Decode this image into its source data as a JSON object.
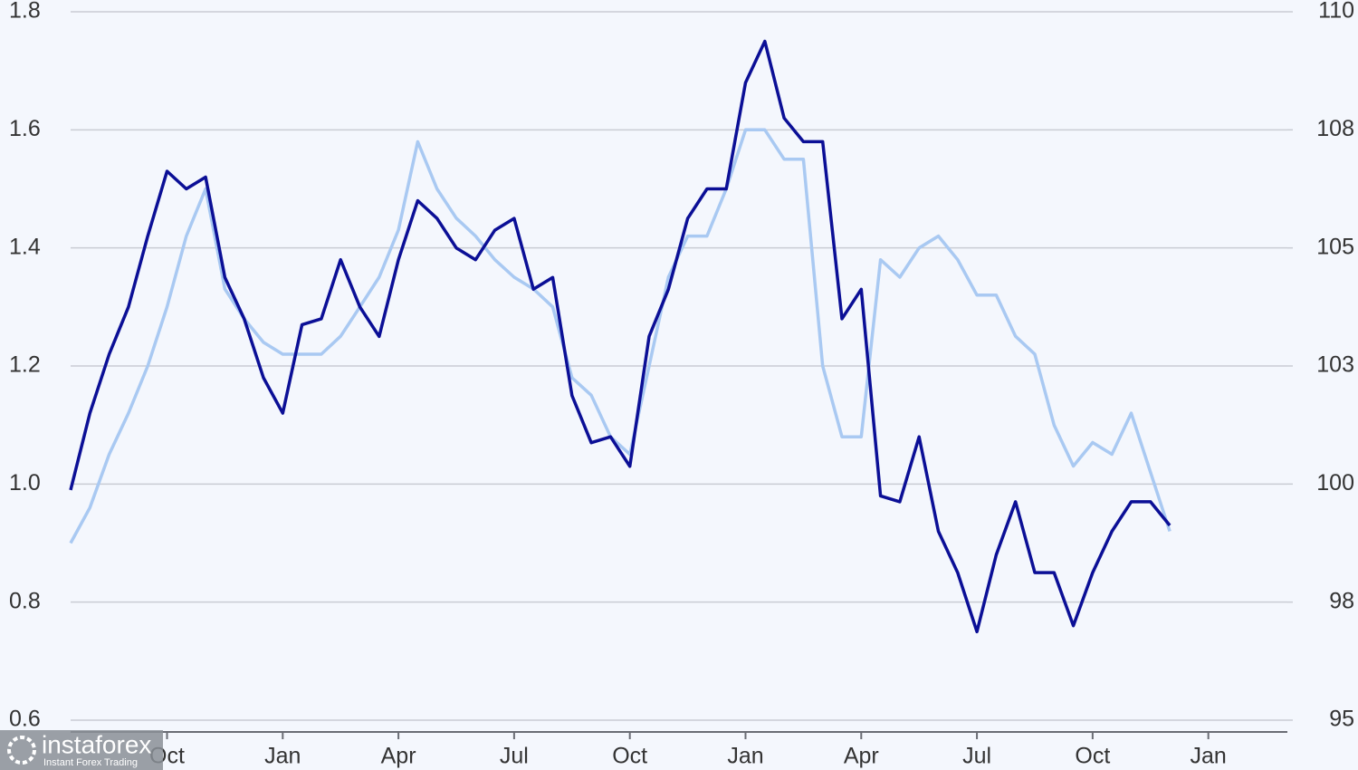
{
  "chart_data": {
    "type": "line",
    "x": [
      -2.5,
      -2,
      -1.5,
      -1,
      -0.5,
      0,
      0.5,
      1,
      1.5,
      2,
      2.5,
      3,
      3.5,
      4,
      4.5,
      5,
      5.5,
      6,
      6.5,
      7,
      7.5,
      8,
      8.5,
      9,
      9.5,
      10,
      10.5,
      11,
      11.5,
      12,
      12.5,
      13,
      13.5,
      14,
      14.5,
      15,
      15.5,
      16,
      16.5,
      17,
      17.5,
      18,
      18.5,
      19,
      19.5,
      20,
      20.5,
      21,
      21.5,
      22,
      22.5,
      23,
      23.5,
      24,
      24.5,
      25,
      25.5,
      26
    ],
    "series": [
      {
        "color": "#0b0f96",
        "axis": "y",
        "values": [
          0.99,
          1.12,
          1.22,
          1.3,
          1.42,
          1.53,
          1.5,
          1.52,
          1.35,
          1.28,
          1.18,
          1.12,
          1.27,
          1.28,
          1.38,
          1.3,
          1.25,
          1.38,
          1.48,
          1.45,
          1.4,
          1.38,
          1.43,
          1.45,
          1.33,
          1.35,
          1.15,
          1.07,
          1.08,
          1.03,
          1.25,
          1.33,
          1.45,
          1.5,
          1.5,
          1.68,
          1.75,
          1.62,
          1.58,
          1.58,
          1.28,
          1.33,
          0.98,
          0.97,
          1.08,
          0.92,
          0.85,
          0.75,
          0.88,
          0.97,
          0.85,
          0.85,
          0.76,
          0.85,
          0.92,
          0.97,
          0.97,
          0.93
        ]
      },
      {
        "color": "#a9c9f2",
        "axis": "y2",
        "values": [
          98.75,
          99.5,
          100.63,
          101.5,
          102.5,
          103.75,
          105.25,
          106.25,
          104.13,
          103.5,
          103,
          102.75,
          102.75,
          102.75,
          103.13,
          103.75,
          104.38,
          105.38,
          107.25,
          106.25,
          105.63,
          105.25,
          104.75,
          104.38,
          104.13,
          103.75,
          102.25,
          101.88,
          101,
          100.63,
          102.5,
          104.38,
          105.25,
          105.25,
          106.25,
          107.5,
          107.5,
          106.88,
          106.88,
          102.5,
          101,
          101,
          104.75,
          104.38,
          105,
          105.25,
          104.75,
          104,
          104,
          103.13,
          102.75,
          101.25,
          100.38,
          100.88,
          100.63,
          101.5,
          100.25,
          99
        ]
      }
    ],
    "xlim": [
      -2.5,
      29.05
    ],
    "xticks": [
      {
        "value": 0,
        "label": "Oct"
      },
      {
        "value": 3,
        "label": "Jan"
      },
      {
        "value": 6,
        "label": "Apr"
      },
      {
        "value": 9,
        "label": "Jul"
      },
      {
        "value": 12,
        "label": "Oct"
      },
      {
        "value": 15,
        "label": "Jan"
      },
      {
        "value": 18,
        "label": "Apr"
      },
      {
        "value": 21,
        "label": "Jul"
      },
      {
        "value": 24,
        "label": "Oct"
      },
      {
        "value": 27,
        "label": "Jan"
      }
    ],
    "ylim": [
      0.6,
      1.8
    ],
    "yticks": [
      0.6,
      0.8,
      {
        "value": 1,
        "label": "1.0"
      },
      1.2,
      1.4,
      1.6,
      1.8
    ],
    "y2lim": [
      95,
      110
    ],
    "y2ticks": [
      95,
      {
        "value": 97.5,
        "label": "98"
      },
      100,
      {
        "value": 102.5,
        "label": "103"
      },
      105,
      {
        "value": 107.5,
        "label": "108"
      },
      110
    ],
    "grid": true,
    "watermark": {
      "title": "instaforex",
      "subtitle": "Instant Forex Trading"
    }
  }
}
